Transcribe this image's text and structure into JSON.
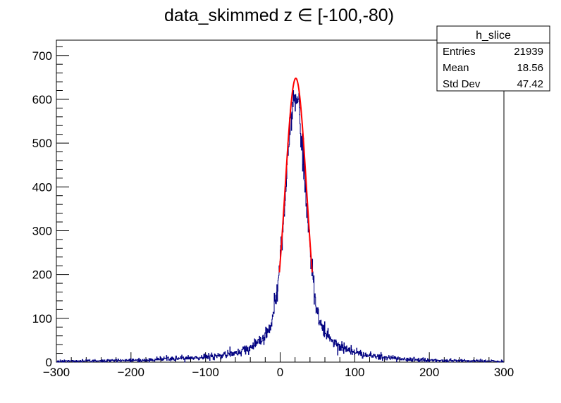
{
  "chart_data": {
    "type": "histogram",
    "title": "data_skimmed z  ∈ [-100,-80)",
    "xlabel": "",
    "ylabel": "",
    "xlim": [
      -300,
      300
    ],
    "ylim": [
      0,
      735
    ],
    "x_ticks": [
      -300,
      -200,
      -100,
      0,
      100,
      200,
      300
    ],
    "x_tick_labels": [
      "−300",
      "−200",
      "−100",
      "0",
      "100",
      "200",
      "300"
    ],
    "y_ticks": [
      0,
      100,
      200,
      300,
      400,
      500,
      600,
      700
    ],
    "y_tick_labels": [
      "0",
      "100",
      "200",
      "300",
      "400",
      "500",
      "600",
      "700"
    ],
    "histogram": {
      "name": "h_slice",
      "color": "#000080",
      "bin_width": 0.5,
      "shape": {
        "peak_center": 21,
        "peak_height": 600,
        "core_sigma": 13,
        "tail_width": 32,
        "tail_weight": 0.25,
        "max_value": 698
      }
    },
    "fit": {
      "type": "gaussian",
      "color": "#ff0000",
      "mean": 21,
      "sigma": 14.5,
      "amplitude": 648,
      "x_range": [
        -1,
        43
      ]
    },
    "stats": {
      "title": "h_slice",
      "rows": [
        {
          "label": "Entries",
          "value": "21939"
        },
        {
          "label": "Mean",
          "value": "18.56"
        },
        {
          "label": "Std Dev",
          "value": "47.42"
        }
      ]
    }
  }
}
